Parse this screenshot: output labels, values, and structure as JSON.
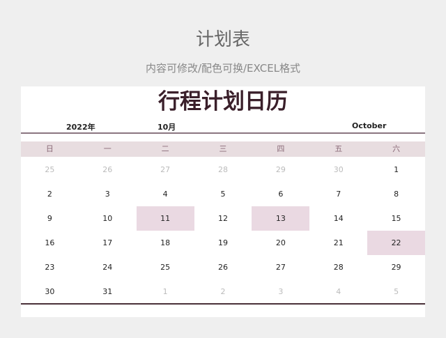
{
  "header": {
    "title": "计划表",
    "subtitle": "内容可修改/配色可换/EXCEL格式"
  },
  "calendar": {
    "title": "行程计划日历",
    "year": "2022年",
    "month": "10月",
    "month_en": "October",
    "weekdays": [
      "日",
      "一",
      "二",
      "三",
      "四",
      "五",
      "六"
    ],
    "highlight_color": "#ead9e2",
    "weeks": [
      [
        {
          "d": "25",
          "other": true
        },
        {
          "d": "26",
          "other": true
        },
        {
          "d": "27",
          "other": true
        },
        {
          "d": "28",
          "other": true
        },
        {
          "d": "29",
          "other": true
        },
        {
          "d": "30",
          "other": true
        },
        {
          "d": "1"
        }
      ],
      [
        {
          "d": "2"
        },
        {
          "d": "3"
        },
        {
          "d": "4"
        },
        {
          "d": "5"
        },
        {
          "d": "6"
        },
        {
          "d": "7"
        },
        {
          "d": "8"
        }
      ],
      [
        {
          "d": "9"
        },
        {
          "d": "10"
        },
        {
          "d": "11",
          "highlight": true
        },
        {
          "d": "12"
        },
        {
          "d": "13",
          "highlight": true
        },
        {
          "d": "14"
        },
        {
          "d": "15"
        }
      ],
      [
        {
          "d": "16"
        },
        {
          "d": "17"
        },
        {
          "d": "18"
        },
        {
          "d": "19"
        },
        {
          "d": "20"
        },
        {
          "d": "21"
        },
        {
          "d": "22",
          "highlight": true
        }
      ],
      [
        {
          "d": "23"
        },
        {
          "d": "24"
        },
        {
          "d": "25"
        },
        {
          "d": "26"
        },
        {
          "d": "27"
        },
        {
          "d": "28"
        },
        {
          "d": "29"
        }
      ],
      [
        {
          "d": "30"
        },
        {
          "d": "31"
        },
        {
          "d": "1",
          "other": true
        },
        {
          "d": "2",
          "other": true
        },
        {
          "d": "3",
          "other": true
        },
        {
          "d": "4",
          "other": true
        },
        {
          "d": "5",
          "other": true
        }
      ]
    ]
  }
}
